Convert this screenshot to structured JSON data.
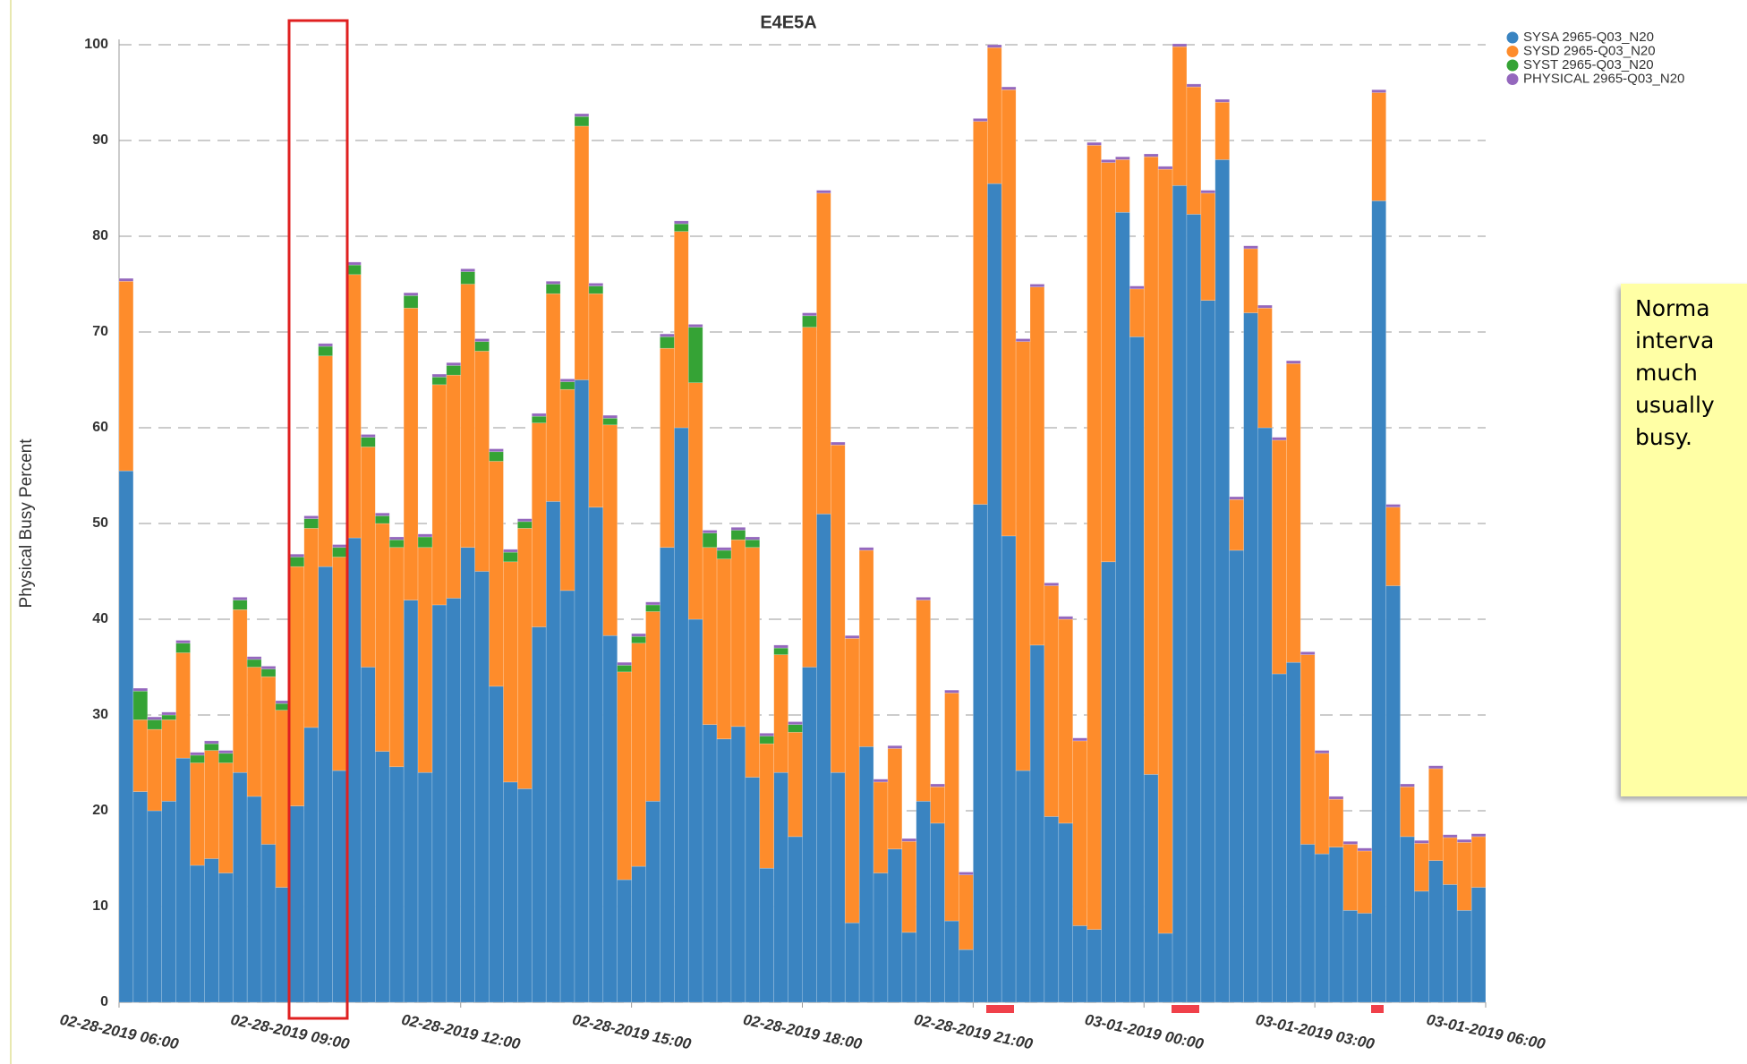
{
  "chart_data": {
    "type": "stacked_bar",
    "title": "E4E5A",
    "y_label": "Physical Busy Percent",
    "ylim": [
      0,
      100
    ],
    "yticks": [
      0,
      10,
      20,
      30,
      40,
      50,
      60,
      70,
      80,
      90,
      100
    ],
    "grid": true,
    "xlim": [
      0,
      96
    ],
    "xticks": [
      {
        "value": 0,
        "label": "02-28-2019 06:00"
      },
      {
        "value": 12,
        "label": "02-28-2019 09:00"
      },
      {
        "value": 24,
        "label": "02-28-2019 12:00"
      },
      {
        "value": 36,
        "label": "02-28-2019 15:00"
      },
      {
        "value": 48,
        "label": "02-28-2019 18:00"
      },
      {
        "value": 60,
        "label": "02-28-2019 21:00"
      },
      {
        "value": 72,
        "label": "03-01-2019 00:00"
      },
      {
        "value": 84,
        "label": "03-01-2019 03:00"
      },
      {
        "value": 96,
        "label": "03-01-2019 06:00"
      }
    ],
    "legend": "top-right",
    "series": [
      {
        "name": "SYSA 2965-Q03_N20",
        "color": "#3a84c1",
        "values": [
          55.5,
          22,
          20,
          21,
          25.5,
          14.3,
          15,
          13.5,
          24,
          21.5,
          16.5,
          12,
          20.5,
          28.7,
          45.5,
          24.2,
          48.5,
          35,
          26.2,
          24.6,
          42,
          24,
          41.5,
          42.2,
          47.5,
          45,
          33,
          23,
          22.3,
          39.2,
          52.3,
          43,
          65,
          51.7,
          38.3,
          12.8,
          14.2,
          21,
          47.5,
          60,
          40,
          29,
          27.5,
          28.8,
          23.5,
          14,
          24,
          17.3,
          35,
          51,
          24,
          8.3,
          26.7,
          13.5,
          16,
          7.3,
          21,
          18.7,
          8.5,
          5.5,
          52,
          85.5,
          48.7,
          24.2,
          37.3,
          19.4,
          18.7,
          8,
          7.6,
          46,
          82.5,
          69.5,
          23.8,
          7.2,
          85.3,
          82.3,
          73.3,
          88,
          47.2,
          72,
          60,
          34.3,
          35.5,
          16.5,
          15.5,
          16.2,
          9.6,
          9.3,
          83.7,
          43.5,
          17.3,
          11.6,
          14.8,
          12.3,
          9.6,
          12
        ]
      },
      {
        "name": "SYSD 2965-Q03_N20",
        "color": "#fe8c2b",
        "values": [
          19.8,
          7.5,
          8.5,
          8.5,
          11,
          10.7,
          11.3,
          11.5,
          17,
          13.5,
          17.5,
          18.5,
          25,
          20.8,
          22,
          22.3,
          27.5,
          23,
          23.8,
          22.9,
          30.5,
          23.5,
          23,
          23.3,
          27.5,
          23,
          23.5,
          23,
          27.2,
          21.3,
          21.7,
          21,
          26.5,
          22.3,
          22,
          21.7,
          23.3,
          19.8,
          20.8,
          20.5,
          24.7,
          18.5,
          18.8,
          19.5,
          24,
          13,
          12.3,
          10.9,
          35.5,
          33.5,
          34.2,
          29.7,
          20.5,
          9.5,
          10.5,
          9.5,
          21,
          3.8,
          23.8,
          7.8,
          40,
          14.2,
          46.6,
          44.8,
          37.4,
          24.1,
          21.3,
          19.3,
          81.9,
          41.7,
          5.5,
          5,
          64.5,
          79.8,
          14.5,
          13.3,
          11.2,
          6,
          5.3,
          6.7,
          12.5,
          24.4,
          31.2,
          19.8,
          10.5,
          5,
          6.9,
          6.5,
          11.3,
          8.2,
          5.2,
          5,
          9.6,
          4.9,
          7.1,
          5.3
        ]
      },
      {
        "name": "SYST 2965-Q03_N20",
        "color": "#35a335",
        "values": [
          0,
          3,
          1,
          0.5,
          1,
          0.8,
          0.7,
          1,
          1,
          0.8,
          0.8,
          0.7,
          1,
          1,
          1,
          1,
          1,
          1,
          0.8,
          0.8,
          1.3,
          1.1,
          0.8,
          1,
          1.3,
          1,
          1,
          1,
          0.7,
          0.7,
          1,
          0.8,
          1,
          0.8,
          0.7,
          0.7,
          0.7,
          0.7,
          1.2,
          0.8,
          5.8,
          1.5,
          0.9,
          1,
          0.8,
          0.8,
          0.7,
          0.8,
          1.2,
          0,
          0,
          0,
          0,
          0,
          0,
          0,
          0,
          0,
          0,
          0,
          0,
          0,
          0,
          0,
          0,
          0,
          0,
          0,
          0,
          0,
          0,
          0,
          0,
          0,
          0,
          0,
          0,
          0,
          0,
          0,
          0,
          0,
          0,
          0,
          0,
          0,
          0,
          0,
          0,
          0,
          0,
          0,
          0,
          0,
          0,
          0
        ]
      },
      {
        "name": "PHYSICAL 2965-Q03_N20",
        "color": "#9467bd",
        "values": [
          0.3,
          0.3,
          0.3,
          0.3,
          0.3,
          0.3,
          0.3,
          0.3,
          0.3,
          0.3,
          0.3,
          0.3,
          0.3,
          0.3,
          0.3,
          0.3,
          0.3,
          0.3,
          0.3,
          0.3,
          0.3,
          0.3,
          0.3,
          0.3,
          0.3,
          0.3,
          0.3,
          0.3,
          0.3,
          0.3,
          0.3,
          0.3,
          0.3,
          0.3,
          0.3,
          0.3,
          0.3,
          0.3,
          0.3,
          0.3,
          0.3,
          0.3,
          0.3,
          0.3,
          0.3,
          0.3,
          0.3,
          0.3,
          0.3,
          0.3,
          0.3,
          0.3,
          0.3,
          0.3,
          0.3,
          0.3,
          0.3,
          0.3,
          0.3,
          0.3,
          0.3,
          0.3,
          0.3,
          0.3,
          0.3,
          0.3,
          0.3,
          0.3,
          0.3,
          0.3,
          0.3,
          0.3,
          0.3,
          0.3,
          0.3,
          0.3,
          0.3,
          0.3,
          0.3,
          0.3,
          0.3,
          0.3,
          0.3,
          0.3,
          0.3,
          0.3,
          0.3,
          0.3,
          0.3,
          0.3,
          0.3,
          0.3,
          0.3,
          0.3,
          0.3,
          0.3
        ]
      }
    ]
  },
  "note": {
    "lines": [
      "Norma",
      "interva",
      "much",
      "usually",
      "busy."
    ]
  }
}
